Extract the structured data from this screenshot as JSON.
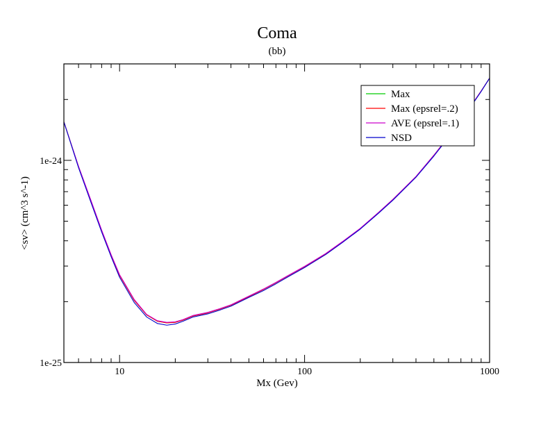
{
  "chart_data": {
    "type": "line",
    "title": "Coma",
    "subtitle": "(bb)",
    "xlabel": "Mx (Gev)",
    "ylabel": "<sv> (cm^3 s^-1)",
    "xscale": "log",
    "yscale": "log",
    "xlim": [
      5,
      1000
    ],
    "ylim": [
      1e-25,
      3e-24
    ],
    "x_tick_labels": [
      {
        "value": 10,
        "label": "10"
      },
      {
        "value": 100,
        "label": "100"
      },
      {
        "value": 1000,
        "label": "1000"
      }
    ],
    "y_tick_labels": [
      {
        "value": 1e-25,
        "label": "1e-25"
      },
      {
        "value": 1e-24,
        "label": "1e-24"
      }
    ],
    "legend_position": "top-right",
    "grid": false,
    "series": [
      {
        "name": "Max",
        "color": "#00cc00",
        "x": [
          5,
          6,
          7,
          8,
          9,
          10,
          12,
          14,
          16,
          18,
          20,
          22,
          25,
          30,
          35,
          40,
          50,
          60,
          70,
          80,
          100,
          130,
          160,
          200,
          250,
          300,
          400,
          500,
          600,
          700,
          800,
          900,
          1000
        ],
        "y": [
          1.55e-24,
          9.3e-25,
          6.3e-25,
          4.5e-25,
          3.4e-25,
          2.7e-25,
          2.03e-25,
          1.72e-25,
          1.6e-25,
          1.57e-25,
          1.58e-25,
          1.62e-25,
          1.7e-25,
          1.76e-25,
          1.84e-25,
          1.92e-25,
          2.12e-25,
          2.3e-25,
          2.48e-25,
          2.66e-25,
          2.98e-25,
          3.45e-25,
          3.95e-25,
          4.6e-25,
          5.5e-25,
          6.4e-25,
          8.3e-25,
          1.06e-24,
          1.31e-24,
          1.58e-24,
          1.88e-24,
          2.2e-24,
          2.55e-24
        ]
      },
      {
        "name": "Max (epsrel=.2)",
        "color": "#ff0000",
        "x": [
          5,
          6,
          7,
          8,
          9,
          10,
          12,
          14,
          16,
          18,
          20,
          22,
          25,
          30,
          35,
          40,
          50,
          60,
          70,
          80,
          100,
          130,
          160,
          200,
          250,
          300,
          400,
          500,
          600,
          700,
          800,
          900,
          1000
        ],
        "y": [
          1.55e-24,
          9.3e-25,
          6.3e-25,
          4.5e-25,
          3.4e-25,
          2.7e-25,
          2.03e-25,
          1.72e-25,
          1.6e-25,
          1.57e-25,
          1.58e-25,
          1.62e-25,
          1.7e-25,
          1.76e-25,
          1.84e-25,
          1.92e-25,
          2.12e-25,
          2.3e-25,
          2.48e-25,
          2.66e-25,
          2.98e-25,
          3.45e-25,
          3.95e-25,
          4.6e-25,
          5.5e-25,
          6.4e-25,
          8.3e-25,
          1.06e-24,
          1.31e-24,
          1.58e-24,
          1.88e-24,
          2.2e-24,
          2.55e-24
        ]
      },
      {
        "name": "AVE (epsrel=.1)",
        "color": "#cc00cc",
        "x": [
          5,
          6,
          7,
          8,
          9,
          10,
          12,
          14,
          16,
          18,
          20,
          22,
          25,
          30,
          35,
          40,
          50,
          60,
          70,
          80,
          100,
          130,
          160,
          200,
          250,
          300,
          400,
          500,
          600,
          700,
          800,
          900,
          1000
        ],
        "y": [
          1.55e-24,
          9.35e-25,
          6.35e-25,
          4.52e-25,
          3.42e-25,
          2.72e-25,
          2.05e-25,
          1.73e-25,
          1.61e-25,
          1.58e-25,
          1.59e-25,
          1.63e-25,
          1.71e-25,
          1.77e-25,
          1.85e-25,
          1.93e-25,
          2.13e-25,
          2.31e-25,
          2.49e-25,
          2.67e-25,
          2.99e-25,
          3.46e-25,
          3.96e-25,
          4.61e-25,
          5.51e-25,
          6.41e-25,
          8.32e-25,
          1.06e-24,
          1.31e-24,
          1.58e-24,
          1.88e-24,
          2.2e-24,
          2.55e-24
        ]
      },
      {
        "name": "NSD",
        "color": "#0000cc",
        "x": [
          5,
          6,
          7,
          8,
          9,
          10,
          12,
          14,
          16,
          18,
          20,
          22,
          25,
          30,
          35,
          40,
          50,
          60,
          70,
          80,
          100,
          130,
          160,
          200,
          250,
          300,
          400,
          500,
          600,
          700,
          800,
          900,
          1000
        ],
        "y": [
          1.55e-24,
          9.2e-25,
          6.2e-25,
          4.42e-25,
          3.34e-25,
          2.64e-25,
          1.98e-25,
          1.68e-25,
          1.56e-25,
          1.53e-25,
          1.55e-25,
          1.6e-25,
          1.68e-25,
          1.74e-25,
          1.82e-25,
          1.9e-25,
          2.1e-25,
          2.27e-25,
          2.45e-25,
          2.63e-25,
          2.95e-25,
          3.42e-25,
          3.92e-25,
          4.57e-25,
          5.46e-25,
          6.35e-25,
          8.25e-25,
          1.05e-24,
          1.3e-24,
          1.57e-24,
          1.87e-24,
          2.19e-24,
          2.55e-24
        ]
      }
    ]
  }
}
